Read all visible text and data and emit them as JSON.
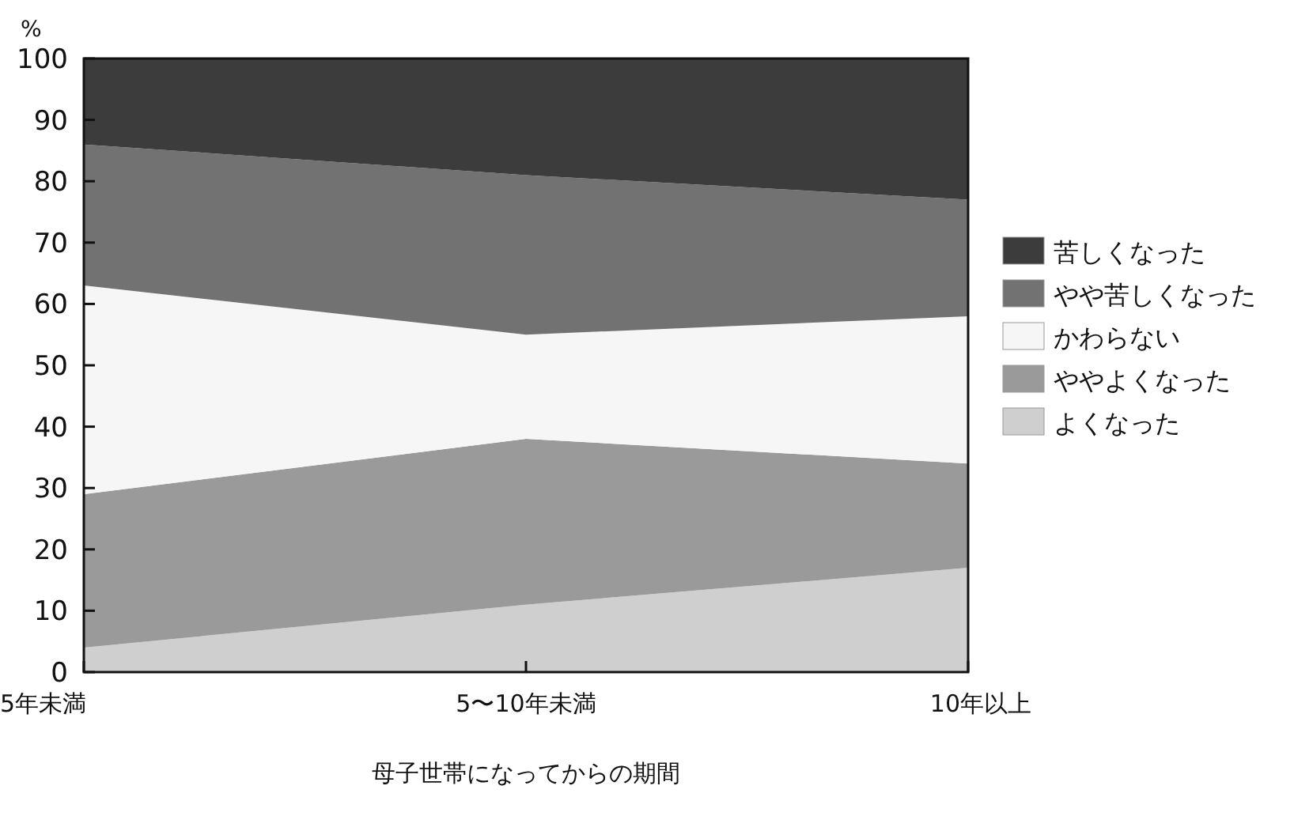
{
  "chart_data": {
    "type": "area",
    "stacked": true,
    "ylabel": "%",
    "xlabel": "母子世帯になってからの期間",
    "categories": [
      "5年未満",
      "5〜10年未満",
      "10年以上"
    ],
    "ylim": [
      0,
      100
    ],
    "yticks": [
      0,
      10,
      20,
      30,
      40,
      50,
      60,
      70,
      80,
      90,
      100
    ],
    "grid": false,
    "legend": "right",
    "series": [
      {
        "name": "よくなった",
        "color": "#cfcfcf",
        "values": [
          4,
          11,
          17
        ]
      },
      {
        "name": "ややよくなった",
        "color": "#9a9a9a",
        "values": [
          25,
          27,
          17
        ]
      },
      {
        "name": "かわらない",
        "color": "#f6f6f6",
        "values": [
          34,
          17,
          24
        ]
      },
      {
        "name": "やや苦しくなった",
        "color": "#727272",
        "values": [
          23,
          26,
          19
        ]
      },
      {
        "name": "苦しくなった",
        "color": "#3c3c3c",
        "values": [
          14,
          19,
          23
        ]
      }
    ]
  }
}
